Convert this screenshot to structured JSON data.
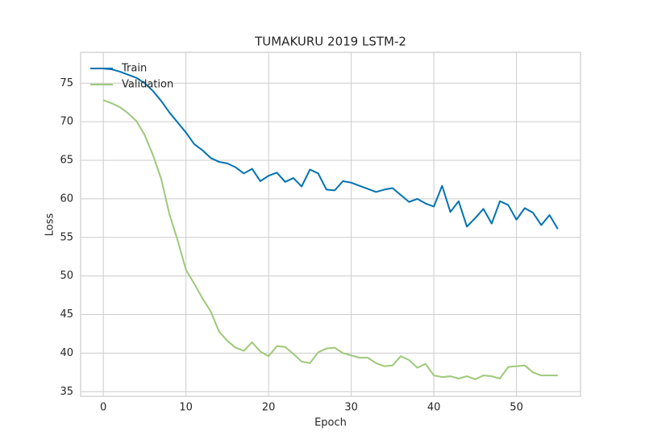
{
  "chart_data": {
    "type": "line",
    "title": "TUMAKURU 2019 LSTM-2",
    "xlabel": "Epoch",
    "ylabel": "Loss",
    "x": [
      0,
      1,
      2,
      3,
      4,
      5,
      6,
      7,
      8,
      9,
      10,
      11,
      12,
      13,
      14,
      15,
      16,
      17,
      18,
      19,
      20,
      21,
      22,
      23,
      24,
      25,
      26,
      27,
      28,
      29,
      30,
      31,
      32,
      33,
      34,
      35,
      36,
      37,
      38,
      39,
      40,
      41,
      42,
      43,
      44,
      45,
      46,
      47,
      48,
      49,
      50,
      51,
      52,
      53,
      54,
      55
    ],
    "series": [
      {
        "name": "Train",
        "color": "#0072b2",
        "values": [
          76.9,
          76.8,
          76.5,
          76.1,
          75.7,
          75.0,
          74.0,
          72.7,
          71.2,
          69.9,
          68.6,
          67.1,
          66.3,
          65.3,
          64.8,
          64.6,
          64.1,
          63.3,
          63.9,
          62.3,
          63.0,
          63.4,
          62.2,
          62.7,
          61.6,
          63.8,
          63.3,
          61.2,
          61.1,
          62.3,
          62.1,
          61.7,
          61.3,
          60.9,
          61.2,
          61.4,
          60.5,
          59.6,
          60.0,
          59.4,
          59.0,
          61.7,
          58.3,
          59.7,
          56.4,
          57.5,
          58.7,
          56.8,
          59.7,
          59.2,
          57.3,
          58.8,
          58.2,
          56.6,
          57.9,
          56.1
        ]
      },
      {
        "name": "Validation",
        "color": "#9dc97a",
        "values": [
          72.8,
          72.4,
          71.9,
          71.1,
          70.1,
          68.3,
          65.7,
          62.6,
          58.0,
          54.6,
          50.8,
          49.0,
          47.1,
          45.4,
          42.8,
          41.6,
          40.7,
          40.3,
          41.4,
          40.2,
          39.6,
          40.9,
          40.8,
          39.9,
          38.9,
          38.7,
          40.1,
          40.6,
          40.7,
          40.0,
          39.7,
          39.4,
          39.4,
          38.7,
          38.3,
          38.4,
          39.6,
          39.1,
          38.1,
          38.6,
          37.1,
          36.9,
          37.0,
          36.7,
          37.0,
          36.6,
          37.1,
          37.0,
          36.7,
          38.2,
          38.3,
          38.4,
          37.5,
          37.1,
          37.1,
          37.1
        ]
      }
    ],
    "xlim": [
      -2.75,
      57.75
    ],
    "xticks": [
      0,
      10,
      20,
      30,
      40,
      50
    ],
    "ylim": [
      34.4,
      79.0
    ],
    "yticks": [
      35,
      40,
      45,
      50,
      55,
      60,
      65,
      70,
      75
    ],
    "grid": true,
    "legend": "upper left"
  }
}
